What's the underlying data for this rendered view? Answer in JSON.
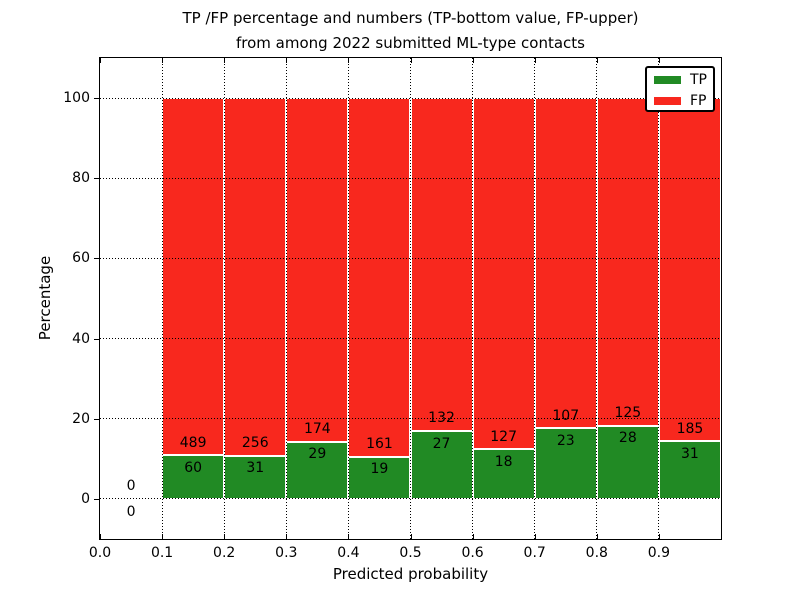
{
  "title": {
    "line1": "TP /FP percentage and numbers (TP-bottom value, FP-upper)",
    "line2": "from among 2022 submitted ML-type contacts"
  },
  "axes": {
    "xlabel": "Predicted probability",
    "ylabel": "Percentage",
    "xlim": [
      0.0,
      1.0
    ],
    "ylim": [
      -10,
      110
    ],
    "yticks": [
      0,
      20,
      40,
      60,
      80,
      100
    ],
    "xticks": [
      {
        "value": 0.0,
        "label": "0.0"
      },
      {
        "value": 0.1,
        "label": "0.1"
      },
      {
        "value": 0.2,
        "label": "0.2"
      },
      {
        "value": 0.3,
        "label": "0.3"
      },
      {
        "value": 0.4,
        "label": "0.4"
      },
      {
        "value": 0.5,
        "label": "0.5"
      },
      {
        "value": 0.6,
        "label": "0.6"
      },
      {
        "value": 0.7,
        "label": "0.7"
      },
      {
        "value": 0.8,
        "label": "0.8"
      },
      {
        "value": 0.9,
        "label": "0.9"
      }
    ],
    "grid": true
  },
  "legend": {
    "position": "upper-right",
    "entries": [
      {
        "label": "TP",
        "color": "#218a24"
      },
      {
        "label": "FP",
        "color": "#f8281e"
      }
    ]
  },
  "chart_data": {
    "type": "bar",
    "stacked": true,
    "orientation": "vertical",
    "bar_width": 0.1,
    "title": "TP /FP percentage and numbers (TP-bottom value, FP-upper) from among 2022 submitted ML-type contacts",
    "xlabel": "Predicted probability",
    "ylabel": "Percentage",
    "xlim": [
      0.0,
      1.0
    ],
    "ylim": [
      -10,
      110
    ],
    "legend_position": "upper right",
    "grid": true,
    "total_contacts": 2022,
    "series": [
      {
        "name": "TP",
        "color": "#218a24"
      },
      {
        "name": "FP",
        "color": "#f8281e"
      }
    ],
    "bins": [
      {
        "range": "0.0-0.1",
        "x0": 0.0,
        "tp": 0,
        "fp": 0,
        "tp_pct": 0,
        "fp_pct": 0
      },
      {
        "range": "0.1-0.2",
        "x0": 0.1,
        "tp": 60,
        "fp": 489,
        "tp_pct": 10.93,
        "fp_pct": 89.07
      },
      {
        "range": "0.2-0.3",
        "x0": 0.2,
        "tp": 31,
        "fp": 256,
        "tp_pct": 10.8,
        "fp_pct": 89.2
      },
      {
        "range": "0.3-0.4",
        "x0": 0.3,
        "tp": 29,
        "fp": 174,
        "tp_pct": 14.29,
        "fp_pct": 85.71
      },
      {
        "range": "0.4-0.5",
        "x0": 0.4,
        "tp": 19,
        "fp": 161,
        "tp_pct": 10.56,
        "fp_pct": 89.44
      },
      {
        "range": "0.5-0.6",
        "x0": 0.5,
        "tp": 27,
        "fp": 132,
        "tp_pct": 16.98,
        "fp_pct": 83.02
      },
      {
        "range": "0.6-0.7",
        "x0": 0.6,
        "tp": 18,
        "fp": 127,
        "tp_pct": 12.41,
        "fp_pct": 87.59
      },
      {
        "range": "0.7-0.8",
        "x0": 0.7,
        "tp": 23,
        "fp": 107,
        "tp_pct": 17.69,
        "fp_pct": 82.31
      },
      {
        "range": "0.8-0.9",
        "x0": 0.8,
        "tp": 28,
        "fp": 125,
        "tp_pct": 18.3,
        "fp_pct": 81.7
      },
      {
        "range": "0.9-1.0",
        "x0": 0.9,
        "tp": 31,
        "fp": 185,
        "tp_pct": 14.35,
        "fp_pct": 85.65
      }
    ]
  },
  "colors": {
    "tp": "#218a24",
    "fp": "#f8281e",
    "grid": "#000000",
    "background": "#ffffff"
  }
}
